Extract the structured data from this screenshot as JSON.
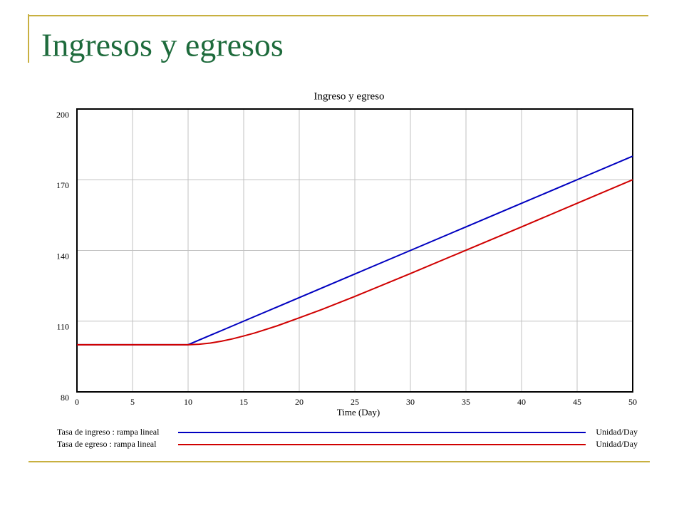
{
  "slide_title": "Ingresos y egresos",
  "chart_data": {
    "type": "line",
    "title": "Ingreso y egreso",
    "x_label": "Time (Day)",
    "x": [
      0,
      10,
      11,
      12,
      13,
      14,
      15,
      16,
      18,
      20,
      22,
      25,
      30,
      35,
      40,
      45,
      50
    ],
    "series": [
      {
        "name": "Tasa de ingreso : rampa lineal",
        "unit": "Unidad/Day",
        "color": "#0000c0",
        "values": [
          100,
          100,
          102,
          104,
          106,
          108,
          110,
          112,
          116,
          120,
          124,
          130,
          140,
          150,
          160,
          170,
          180
        ]
      },
      {
        "name": "Tasa de egreso : rampa lineal",
        "unit": "Unidad/Day",
        "color": "#d00000",
        "values": [
          100,
          100,
          100.2,
          100.7,
          101.5,
          102.5,
          103.7,
          105,
          108,
          111.4,
          114.9,
          120.5,
          130.2,
          140.1,
          150,
          160,
          170
        ]
      }
    ],
    "xlim": [
      0,
      50
    ],
    "xticks": [
      0,
      5,
      10,
      15,
      20,
      25,
      30,
      35,
      40,
      45,
      50
    ],
    "ylim": [
      80,
      200
    ],
    "yticks": [
      80,
      110,
      140,
      170,
      200
    ],
    "grid": true
  }
}
